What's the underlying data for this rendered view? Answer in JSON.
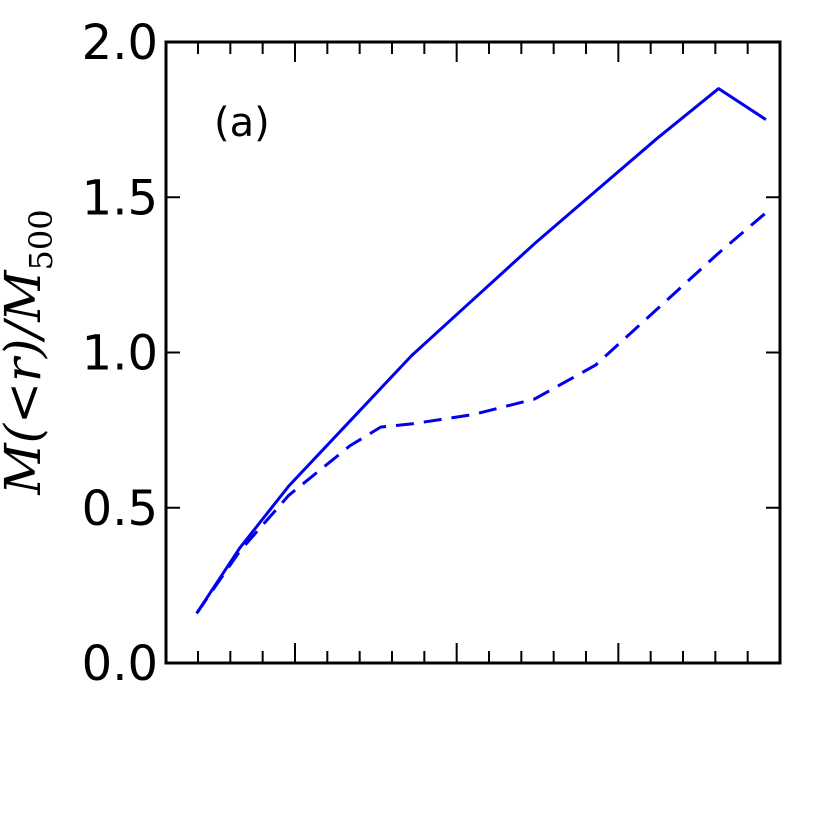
{
  "chart_data": {
    "type": "line",
    "panel_label": "(a)",
    "xlabel": "",
    "ylabel": {
      "main": "M(<r)/M",
      "subscript": "500"
    },
    "ylim": [
      0,
      2.0
    ],
    "yticks": [
      "0.0",
      "0.5",
      "1.0",
      "1.5",
      "2.0"
    ],
    "x_tick_labels_shown": false,
    "xlim": [
      0,
      1
    ],
    "grid": false,
    "legend": "none",
    "series": [
      {
        "style": "solid",
        "color": "#0000ee",
        "x": [
          0.05,
          0.12,
          0.2,
          0.3,
          0.4,
          0.5,
          0.6,
          0.7,
          0.8,
          0.9,
          0.977
        ],
        "y": [
          0.16,
          0.37,
          0.57,
          0.78,
          0.99,
          1.17,
          1.35,
          1.52,
          1.69,
          1.85,
          1.75
        ]
      },
      {
        "style": "dashed",
        "color": "#0000ee",
        "x": [
          0.05,
          0.12,
          0.2,
          0.3,
          0.35,
          0.4,
          0.5,
          0.6,
          0.7,
          0.8,
          0.9,
          0.977
        ],
        "y": [
          0.16,
          0.36,
          0.54,
          0.7,
          0.76,
          0.77,
          0.8,
          0.85,
          0.96,
          1.14,
          1.32,
          1.45
        ]
      }
    ]
  }
}
